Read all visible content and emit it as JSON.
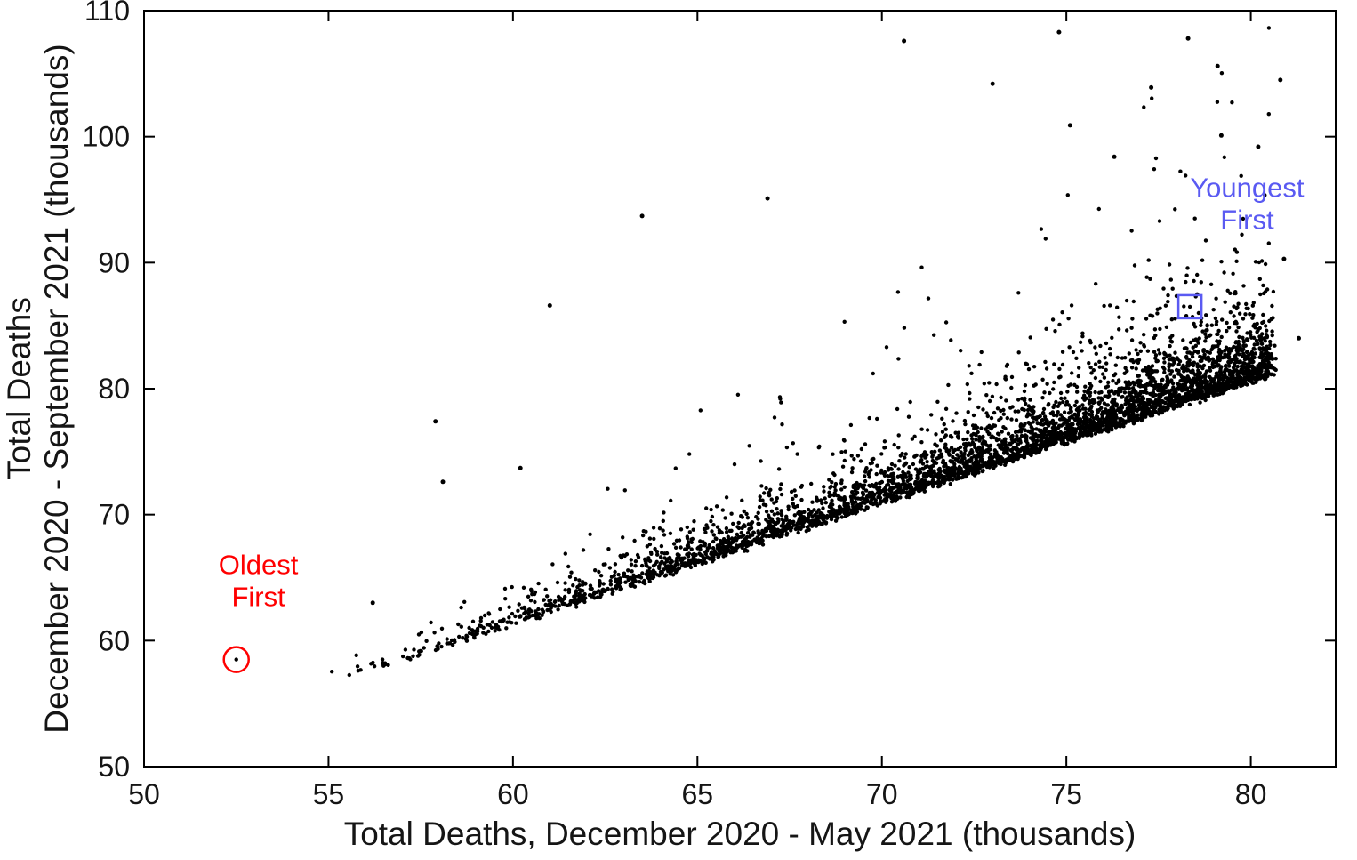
{
  "figure": {
    "background": "#ffffff"
  },
  "chart_data": {
    "type": "scatter",
    "title": "",
    "xlabel": "Total Deaths, December 2020 - May 2021 (thousands)",
    "ylabel_lines": [
      "Total Deaths",
      "December 2020 - September 2021 (thousands)"
    ],
    "xlim": [
      50,
      82.3
    ],
    "ylim": [
      50,
      110
    ],
    "xticks": [
      50,
      55,
      60,
      65,
      70,
      75,
      80
    ],
    "yticks": [
      50,
      60,
      70,
      80,
      90,
      100,
      110
    ],
    "grid": false,
    "legend": null,
    "marker": {
      "color": "#000000",
      "radius_px": 2.2
    },
    "point_cloud": {
      "seed": 1337,
      "n": 4300,
      "x_min": 54.4,
      "x_max": 80.6,
      "x_pow": 0.42,
      "base_slope": 0.96,
      "base_intercept": 3.5,
      "spread_min": 0.35,
      "spread_max": 2.3
    },
    "extra_points": [
      [
        63.5,
        93.7
      ],
      [
        70.6,
        107.6
      ],
      [
        74.8,
        108.3
      ],
      [
        78.3,
        107.8
      ],
      [
        79.1,
        105.6
      ],
      [
        77.3,
        103.9
      ],
      [
        80.8,
        104.5
      ],
      [
        75.1,
        100.9
      ],
      [
        79.2,
        100.1
      ],
      [
        80.9,
        90.3
      ],
      [
        66.9,
        95.1
      ],
      [
        61.0,
        86.6
      ],
      [
        57.9,
        77.4
      ],
      [
        60.2,
        73.7
      ],
      [
        58.1,
        72.6
      ],
      [
        56.2,
        63.0
      ],
      [
        81.3,
        84.0
      ],
      [
        80.2,
        99.2
      ],
      [
        73.0,
        104.2
      ],
      [
        76.3,
        98.4
      ]
    ],
    "annotations": [
      {
        "id": "oldest-first",
        "label_lines": [
          "Oldest",
          "First"
        ],
        "color": "#ff0000",
        "marker_shape": "circle",
        "marker_x": 52.5,
        "marker_y": 58.5,
        "marker_radius_px": 14,
        "text_x": 53.1,
        "text_y": 65.3
      },
      {
        "id": "youngest-first",
        "label_lines": [
          "Youngest",
          "First"
        ],
        "color": "#5a5af2",
        "marker_shape": "square",
        "marker_x": 78.35,
        "marker_y": 86.5,
        "marker_radius_px": 13,
        "text_x": 79.9,
        "text_y": 95.2
      }
    ]
  }
}
